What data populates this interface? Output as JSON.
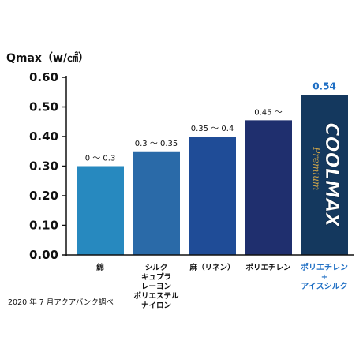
{
  "chart_data": {
    "type": "bar",
    "ylabel": "Qmax（w/㎠）",
    "ylim": [
      0.0,
      0.6
    ],
    "yticks": [
      "0.00",
      "0.10",
      "0.20",
      "0.30",
      "0.40",
      "0.50",
      "0.60"
    ],
    "grid": false,
    "categories": [
      [
        "綿"
      ],
      [
        "シルク",
        "キュプラ",
        "レーヨン",
        "ポリエステル",
        "ナイロン"
      ],
      [
        "麻（リネン）"
      ],
      [
        "ポリエチレン"
      ],
      [
        "ポリエチレン",
        "+",
        "アイスシルク"
      ]
    ],
    "values": [
      0.3,
      0.35,
      0.4,
      0.455,
      0.54
    ],
    "data_labels": [
      "0 〜 0.3",
      "0.3 〜 0.35",
      "0.35 〜 0.4",
      "0.45 〜",
      "0.54"
    ],
    "colors": [
      "#2789bf",
      "#2a6aa8",
      "#1f4c97",
      "#1f2f6e",
      "#14385e"
    ],
    "highlight_index": 4,
    "highlight_color": "#1f6fc4",
    "bar_brand": {
      "main": "COOLMAX",
      "sub": "Premium"
    },
    "note": "2020 年 7 月アクアバンク調べ"
  }
}
